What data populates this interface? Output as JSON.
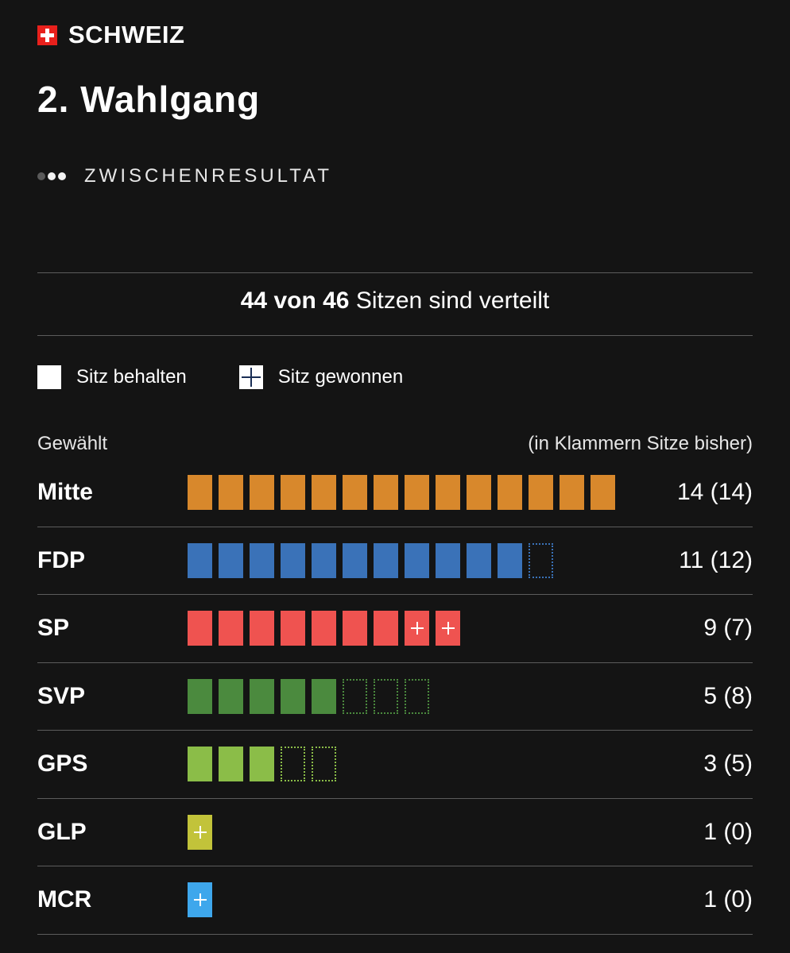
{
  "header": {
    "country": "SCHWEIZ",
    "round": "2. Wahlgang",
    "status": "ZWISCHENRESULTAT"
  },
  "summary": {
    "allocated": "44 von 46",
    "text": " Sitzen sind verteilt"
  },
  "legend": {
    "kept": "Sitz behalten",
    "won": "Sitz gewonnen"
  },
  "columns": {
    "left": "Gewählt",
    "right": "(in Klammern Sitze bisher)"
  },
  "parties": [
    {
      "name": "Mitte",
      "count": "14 (14)",
      "color": "#d8882c",
      "kept": 14,
      "won": 0,
      "lost": 0
    },
    {
      "name": "FDP",
      "count": "11 (12)",
      "color": "#3a72b8",
      "kept": 11,
      "won": 0,
      "lost": 1
    },
    {
      "name": "SP",
      "count": "9 (7)",
      "color": "#ef5350",
      "kept": 7,
      "won": 2,
      "lost": 0
    },
    {
      "name": "SVP",
      "count": "5 (8)",
      "color": "#4b8a3e",
      "kept": 5,
      "won": 0,
      "lost": 3
    },
    {
      "name": "GPS",
      "count": "3 (5)",
      "color": "#8bbd48",
      "kept": 3,
      "won": 0,
      "lost": 2
    },
    {
      "name": "GLP",
      "count": "1 (0)",
      "color": "#c2c33a",
      "kept": 0,
      "won": 1,
      "lost": 0
    },
    {
      "name": "MCR",
      "count": "1 (0)",
      "color": "#3ea7ec",
      "kept": 0,
      "won": 1,
      "lost": 0
    }
  ]
}
